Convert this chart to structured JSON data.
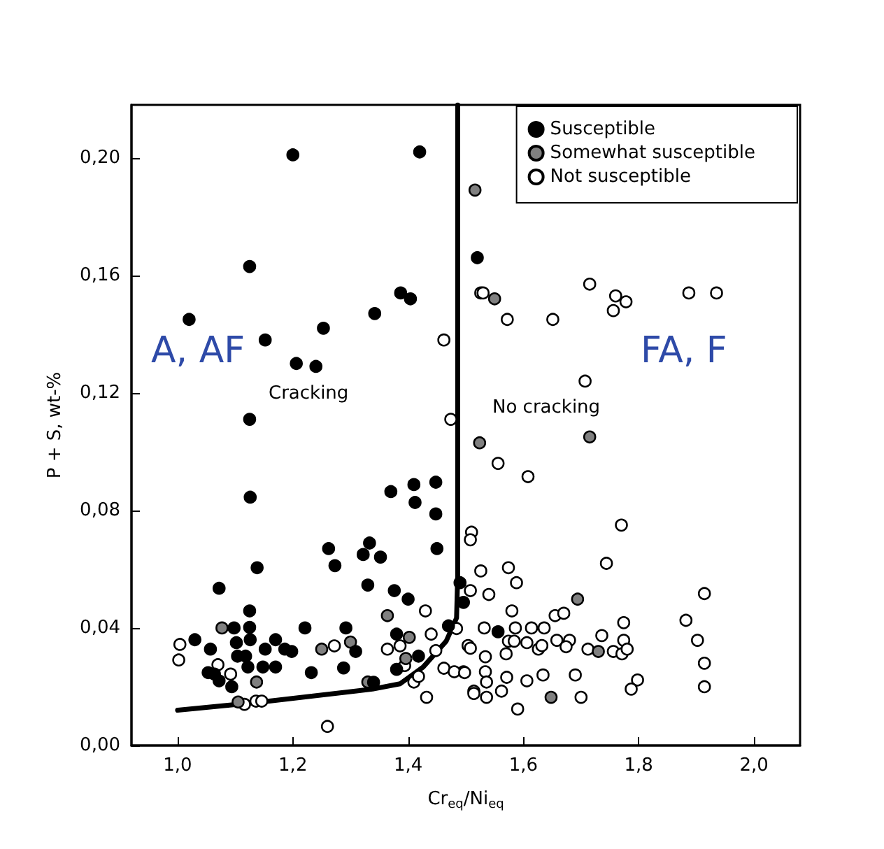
{
  "chart_data": {
    "type": "scatter",
    "xlabel": "Cr$_{eq}$/Ni$_{eq}$",
    "ylabel": "P + S, wt-%",
    "xlim": [
      0.92,
      2.08
    ],
    "ylim": [
      0,
      0.218
    ],
    "xticks": [
      {
        "value": 1.0,
        "label": "1,0"
      },
      {
        "value": 1.2,
        "label": "1,2"
      },
      {
        "value": 1.4,
        "label": "1,4"
      },
      {
        "value": 1.6,
        "label": "1,6"
      },
      {
        "value": 1.8,
        "label": "1,8"
      },
      {
        "value": 2.0,
        "label": "2,0"
      }
    ],
    "yticks": [
      {
        "value": 0,
        "label": "0,00"
      },
      {
        "value": 0.04,
        "label": "0,04"
      },
      {
        "value": 0.08,
        "label": "0,08"
      },
      {
        "value": 0.12,
        "label": "0,12"
      },
      {
        "value": 0.16,
        "label": "0,16"
      },
      {
        "value": 0.2,
        "label": "0,20"
      }
    ],
    "grid": false,
    "legend": "top right",
    "marker": "circle",
    "annotations": [
      "A, AF",
      "FA, F",
      "Cracking",
      "No cracking"
    ],
    "series": [
      {
        "name": "Susceptible",
        "color": "#000000",
        "x": [
          1.2,
          1.42,
          1.52,
          1.125,
          1.387,
          1.404,
          1.342,
          1.253,
          1.02,
          1.152,
          1.206,
          1.24,
          1.125,
          1.126,
          1.138,
          1.072,
          1.125,
          1.125,
          1.098,
          1.03,
          1.102,
          1.126,
          1.17,
          1.186,
          1.198,
          1.152,
          1.104,
          1.118,
          1.057,
          1.053,
          1.064,
          1.072,
          1.094,
          1.122,
          1.148,
          1.17,
          1.221,
          1.232,
          1.262,
          1.273,
          1.292,
          1.309,
          1.288,
          1.322,
          1.333,
          1.352,
          1.33,
          1.37,
          1.41,
          1.412,
          1.448,
          1.448,
          1.45,
          1.376,
          1.4,
          1.38,
          1.418,
          1.34,
          1.38,
          1.47,
          1.49,
          1.496,
          1.556
        ],
        "values": [
          0.201,
          0.202,
          0.166,
          0.163,
          0.154,
          0.152,
          0.147,
          0.142,
          0.145,
          0.138,
          0.13,
          0.129,
          0.111,
          0.0845,
          0.0605,
          0.0535,
          0.0458,
          0.0402,
          0.04,
          0.036,
          0.035,
          0.036,
          0.036,
          0.0328,
          0.032,
          0.0328,
          0.0304,
          0.0304,
          0.0328,
          0.0248,
          0.0243,
          0.022,
          0.02,
          0.0267,
          0.0267,
          0.0267,
          0.04,
          0.0248,
          0.067,
          0.0612,
          0.04,
          0.032,
          0.0264,
          0.065,
          0.0689,
          0.0641,
          0.0546,
          0.0864,
          0.0888,
          0.0827,
          0.0896,
          0.0788,
          0.067,
          0.0527,
          0.0498,
          0.0379,
          0.0304,
          0.0215,
          0.0259,
          0.0407,
          0.0554,
          0.0487,
          0.0387
        ]
      },
      {
        "name": "Somewhat susceptible",
        "color": "#808080",
        "x": [
          1.516,
          1.55,
          1.715,
          1.524,
          1.694,
          1.73,
          1.648,
          1.077,
          1.105,
          1.137,
          1.25,
          1.3,
          1.364,
          1.402,
          1.396,
          1.33
        ],
        "values": [
          0.189,
          0.152,
          0.105,
          0.103,
          0.0498,
          0.032,
          0.0164,
          0.04,
          0.0148,
          0.0216,
          0.0328,
          0.0352,
          0.0442,
          0.0368,
          0.0296,
          0.0216
        ]
      },
      {
        "name": "Not susceptible",
        "color": "#ffffff",
        "x": [
          1.462,
          1.474,
          1.526,
          1.53,
          1.572,
          1.651,
          1.715,
          1.76,
          1.778,
          1.756,
          1.887,
          1.935,
          1.707,
          1.556,
          1.608,
          1.51,
          1.508,
          1.77,
          1.744,
          1.526,
          1.574,
          1.588,
          1.508,
          1.54,
          1.914,
          1.58,
          1.655,
          1.67,
          1.882,
          1.774,
          1.532,
          1.586,
          1.614,
          1.636,
          1.736,
          1.774,
          1.902,
          1.574,
          1.584,
          1.606,
          1.658,
          1.68,
          1.674,
          1.626,
          1.632,
          1.504,
          1.712,
          1.756,
          1.771,
          1.78,
          1.57,
          1.534,
          1.914,
          1.496,
          1.534,
          1.571,
          1.606,
          1.634,
          1.69,
          1.798,
          1.787,
          1.914,
          1.514,
          1.536,
          1.536,
          1.562,
          1.7,
          1.59,
          1.004,
          1.002,
          1.092,
          1.07,
          1.116,
          1.136,
          1.146,
          1.272,
          1.26,
          1.364,
          1.386,
          1.394,
          1.41,
          1.43,
          1.44,
          1.448,
          1.432,
          1.462,
          1.48,
          1.498,
          1.484,
          1.508,
          1.418,
          1.514
        ],
        "values": [
          0.138,
          0.111,
          0.154,
          0.154,
          0.145,
          0.145,
          0.157,
          0.153,
          0.151,
          0.148,
          0.154,
          0.154,
          0.124,
          0.096,
          0.0915,
          0.0726,
          0.07,
          0.075,
          0.062,
          0.0594,
          0.0605,
          0.0554,
          0.0527,
          0.0514,
          0.0517,
          0.0458,
          0.0442,
          0.045,
          0.0426,
          0.0418,
          0.04,
          0.04,
          0.04,
          0.04,
          0.0374,
          0.0358,
          0.0358,
          0.0355,
          0.0355,
          0.035,
          0.0358,
          0.0358,
          0.0336,
          0.0328,
          0.034,
          0.034,
          0.0328,
          0.032,
          0.0312,
          0.0328,
          0.0312,
          0.0302,
          0.028,
          0.0251,
          0.0251,
          0.0232,
          0.022,
          0.024,
          0.024,
          0.0223,
          0.0192,
          0.02,
          0.0185,
          0.0216,
          0.0164,
          0.0185,
          0.0164,
          0.0124,
          0.0344,
          0.0291,
          0.0243,
          0.0275,
          0.014,
          0.0151,
          0.0151,
          0.0339,
          0.0065,
          0.0328,
          0.0339,
          0.0272,
          0.0216,
          0.0458,
          0.0379,
          0.0323,
          0.0164,
          0.0263,
          0.0251,
          0.0248,
          0.0398,
          0.0331,
          0.0235,
          0.0177
        ]
      },
      {
        "type": "line",
        "marker": "none",
        "line_style": "solid",
        "color": "#000000",
        "x": [
          1.0,
          1.146,
          1.338,
          1.386,
          1.426,
          1.466,
          1.484,
          1.486,
          1.486
        ],
        "values": [
          0.012,
          0.0148,
          0.0192,
          0.021,
          0.0267,
          0.0355,
          0.0434,
          0.0578,
          0.218
        ]
      }
    ]
  }
}
